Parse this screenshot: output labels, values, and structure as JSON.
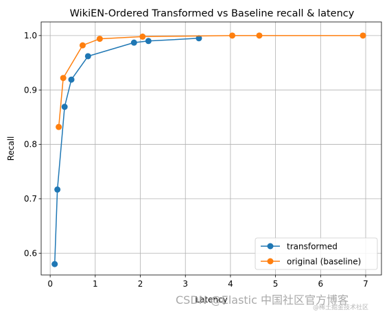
{
  "chart_data": {
    "type": "line",
    "title": "WikiEN-Ordered Transformed vs Baseline recall & latency",
    "xlabel": "Latency",
    "ylabel": "Recall",
    "xlim": [
      -0.2,
      7.35
    ],
    "ylim": [
      0.56,
      1.025
    ],
    "xticks": [
      0,
      1,
      2,
      3,
      4,
      5,
      6,
      7
    ],
    "xtick_labels": [
      "0",
      "1",
      "2",
      "3",
      "4",
      "5",
      "6",
      "7"
    ],
    "yticks": [
      0.6,
      0.7,
      0.8,
      0.9,
      1.0
    ],
    "ytick_labels": [
      "0.6",
      "0.7",
      "0.8",
      "0.9",
      "1.0"
    ],
    "grid": true,
    "legend_position": "bottom-right",
    "series": [
      {
        "name": "transformed",
        "color": "#1f77b4",
        "marker": "circle",
        "points": [
          {
            "x": 0.1,
            "y": 0.58
          },
          {
            "x": 0.16,
            "y": 0.717
          },
          {
            "x": 0.32,
            "y": 0.869
          },
          {
            "x": 0.47,
            "y": 0.919
          },
          {
            "x": 0.84,
            "y": 0.962
          },
          {
            "x": 1.86,
            "y": 0.987
          },
          {
            "x": 2.18,
            "y": 0.99
          },
          {
            "x": 3.3,
            "y": 0.995
          }
        ]
      },
      {
        "name": "original (baseline)",
        "color": "#ff7f0e",
        "marker": "circle",
        "points": [
          {
            "x": 0.19,
            "y": 0.832
          },
          {
            "x": 0.29,
            "y": 0.922
          },
          {
            "x": 0.72,
            "y": 0.982
          },
          {
            "x": 1.1,
            "y": 0.994
          },
          {
            "x": 2.05,
            "y": 0.998
          },
          {
            "x": 4.04,
            "y": 1.0
          },
          {
            "x": 4.64,
            "y": 1.0
          },
          {
            "x": 6.94,
            "y": 1.0
          }
        ]
      }
    ]
  },
  "watermark": {
    "main": "CSDN @Elastic 中国社区官方博客",
    "small": "@稀土掘金技术社区"
  }
}
